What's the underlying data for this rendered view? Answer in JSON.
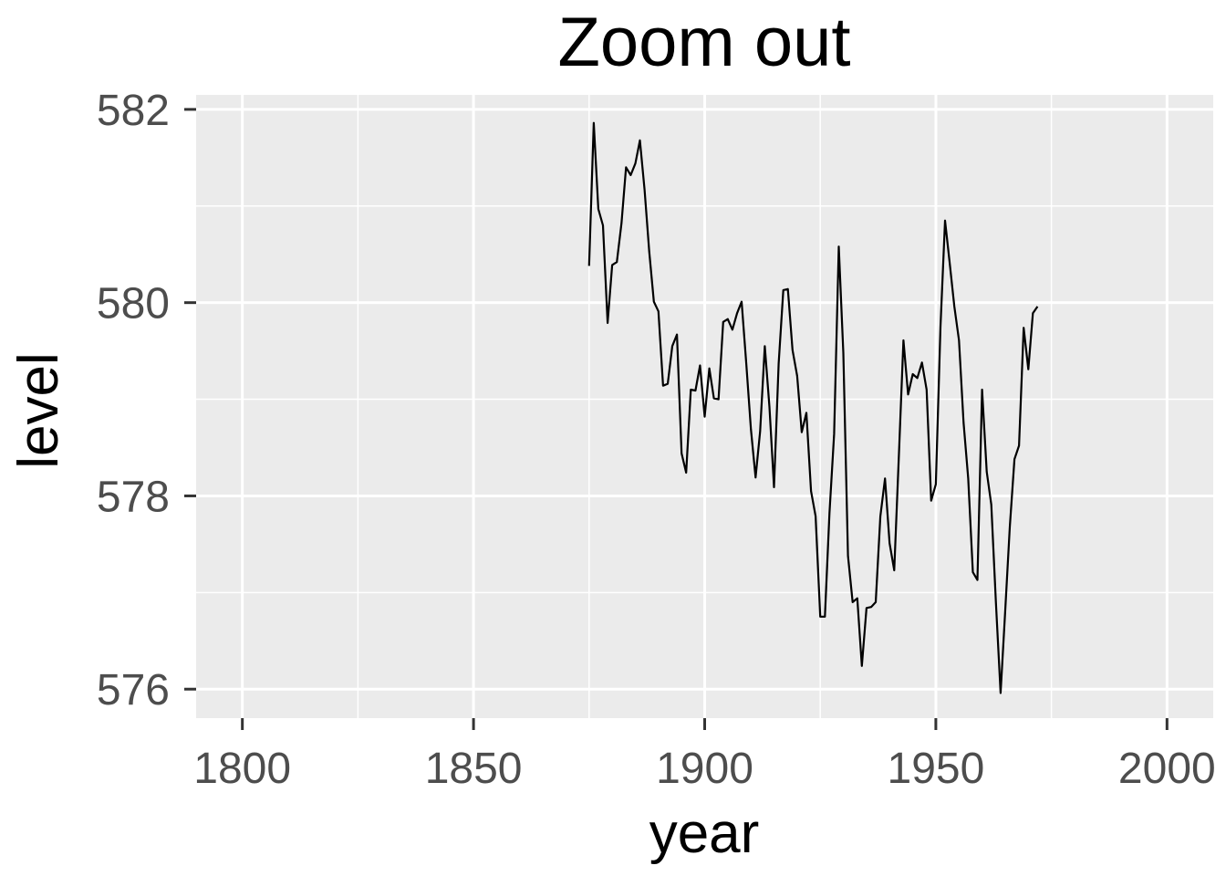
{
  "chart_data": {
    "type": "line",
    "title": "Zoom out",
    "xlabel": "year",
    "ylabel": "level",
    "xlim": [
      1790,
      2010
    ],
    "ylim": [
      575.7,
      582.15
    ],
    "x_ticks": [
      1800,
      1850,
      1900,
      1950,
      2000
    ],
    "x_tick_labels": [
      "1800",
      "1850",
      "1900",
      "1950",
      "2000"
    ],
    "y_ticks": [
      576,
      578,
      580,
      582
    ],
    "y_tick_labels": [
      "576",
      "578",
      "580",
      "582"
    ],
    "grid": true,
    "legend": "none",
    "colors": {
      "panel": "#ebebeb",
      "grid": "#ffffff",
      "line": "#000000",
      "tick_text": "#4d4d4d"
    },
    "series": [
      {
        "x": [
          1875,
          1876,
          1877,
          1878,
          1879,
          1880,
          1881,
          1882,
          1883,
          1884,
          1885,
          1886,
          1887,
          1888,
          1889,
          1890,
          1891,
          1892,
          1893,
          1894,
          1895,
          1896,
          1897,
          1898,
          1899,
          1900,
          1901,
          1902,
          1903,
          1904,
          1905,
          1906,
          1907,
          1908,
          1909,
          1910,
          1911,
          1912,
          1913,
          1914,
          1915,
          1916,
          1917,
          1918,
          1919,
          1920,
          1921,
          1922,
          1923,
          1924,
          1925,
          1926,
          1927,
          1928,
          1929,
          1930,
          1931,
          1932,
          1933,
          1934,
          1935,
          1936,
          1937,
          1938,
          1939,
          1940,
          1941,
          1942,
          1943,
          1944,
          1945,
          1946,
          1947,
          1948,
          1949,
          1950,
          1951,
          1952,
          1953,
          1954,
          1955,
          1956,
          1957,
          1958,
          1959,
          1960,
          1961,
          1962,
          1963,
          1964,
          1965,
          1966,
          1967,
          1968,
          1969,
          1970,
          1971,
          1972
        ],
        "values": [
          580.38,
          581.86,
          580.97,
          580.8,
          579.79,
          580.39,
          580.42,
          580.82,
          581.4,
          581.32,
          581.44,
          581.68,
          581.17,
          580.53,
          580.01,
          579.91,
          579.14,
          579.16,
          579.55,
          579.67,
          578.44,
          578.24,
          579.1,
          579.09,
          579.35,
          578.82,
          579.32,
          579.01,
          579.0,
          579.8,
          579.83,
          579.72,
          579.89,
          580.01,
          579.37,
          578.69,
          578.19,
          578.67,
          579.55,
          578.92,
          578.09,
          579.37,
          580.13,
          580.14,
          579.51,
          579.24,
          578.66,
          578.86,
          578.05,
          577.79,
          576.75,
          576.75,
          577.82,
          578.64,
          580.58,
          579.48,
          577.38,
          576.9,
          576.94,
          576.24,
          576.84,
          576.85,
          576.9,
          577.79,
          578.18,
          577.51,
          577.23,
          578.42,
          579.61,
          579.05,
          579.26,
          579.22,
          579.38,
          579.1,
          577.95,
          578.12,
          579.75,
          580.85,
          580.41,
          579.96,
          579.61,
          578.76,
          578.18,
          577.21,
          577.13,
          579.1,
          578.25,
          577.91,
          576.89,
          575.96,
          576.8,
          577.68,
          578.38,
          578.52,
          579.74,
          579.31,
          579.89,
          579.96
        ]
      }
    ]
  }
}
